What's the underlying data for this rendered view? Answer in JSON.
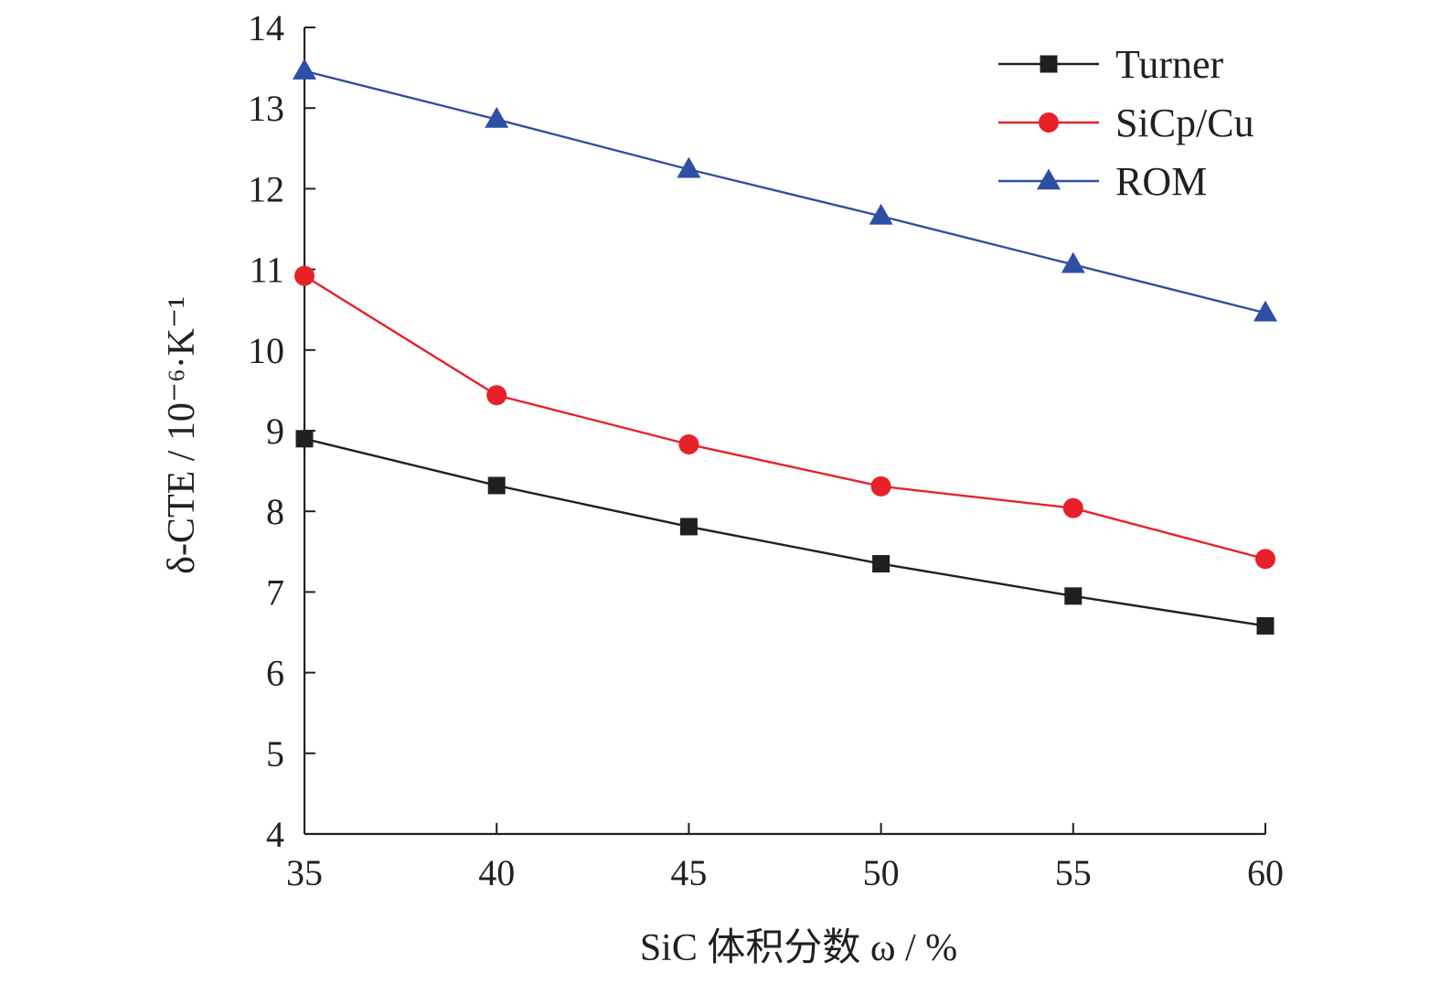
{
  "chart_data": {
    "type": "line",
    "x": [
      35,
      40,
      45,
      50,
      55,
      60
    ],
    "xlim": [
      35,
      60
    ],
    "ylim": [
      4,
      14
    ],
    "xticks": [
      "35",
      "40",
      "45",
      "50",
      "55",
      "60"
    ],
    "yticks": [
      "4",
      "5",
      "6",
      "7",
      "8",
      "9",
      "10",
      "11",
      "12",
      "13",
      "14"
    ],
    "xlabel": "SiC 体积分数 ω / %",
    "ylabel": "δ-CTE / 10⁻⁶·K⁻¹",
    "grid": false,
    "legend_position": "top-right",
    "series": [
      {
        "name": "Turner",
        "marker": "square",
        "color": "#231f20",
        "values": [
          8.9,
          8.32,
          7.81,
          7.35,
          6.95,
          6.58
        ]
      },
      {
        "name": "SiCp/Cu",
        "marker": "circle",
        "color": "#e8202a",
        "values": [
          10.92,
          9.44,
          8.83,
          8.31,
          8.04,
          7.41
        ]
      },
      {
        "name": "ROM",
        "marker": "triangle",
        "color": "#2e4fa3",
        "values": [
          13.46,
          12.86,
          12.24,
          11.66,
          11.06,
          10.46
        ]
      }
    ]
  }
}
